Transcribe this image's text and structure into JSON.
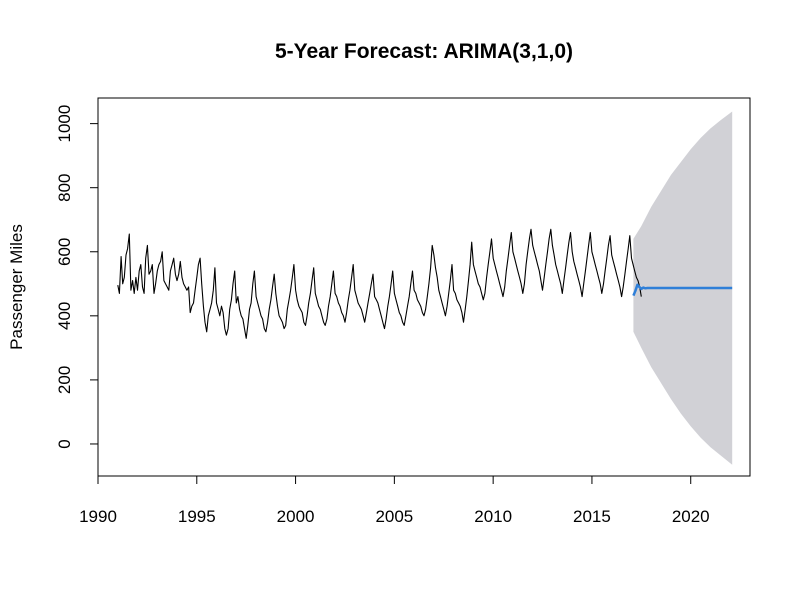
{
  "chart_data": {
    "type": "line",
    "title": "5-Year Forecast: ARIMA(3,1,0)",
    "xlabel": "",
    "ylabel": "Passenger Miles",
    "xlim": [
      1990,
      2023
    ],
    "ylim": [
      -100,
      1080
    ],
    "x_ticks": [
      1990,
      1995,
      2000,
      2005,
      2010,
      2015,
      2020
    ],
    "x_tick_labels": [
      "1990",
      "1995",
      "2000",
      "2005",
      "2010",
      "2015",
      "2020"
    ],
    "y_ticks": [
      0,
      200,
      400,
      600,
      800,
      1000
    ],
    "y_tick_labels": [
      "0",
      "200",
      "400",
      "600",
      "800",
      "1000"
    ],
    "grid": false,
    "legend": "none",
    "series": [
      {
        "kind": "observed",
        "color": "#000000",
        "start": 1991.0,
        "step": 0.0833333,
        "values": [
          496,
          470,
          585,
          500,
          520,
          590,
          610,
          655,
          480,
          510,
          470,
          520,
          480,
          540,
          560,
          490,
          470,
          580,
          620,
          530,
          540,
          560,
          470,
          500,
          540,
          560,
          570,
          600,
          510,
          500,
          490,
          480,
          540,
          560,
          580,
          530,
          510,
          530,
          570,
          520,
          500,
          490,
          480,
          490,
          410,
          430,
          440,
          480,
          520,
          560,
          580,
          500,
          430,
          380,
          350,
          400,
          420,
          440,
          480,
          550,
          440,
          420,
          400,
          430,
          410,
          360,
          340,
          360,
          420,
          450,
          500,
          540,
          440,
          460,
          420,
          400,
          390,
          360,
          330,
          370,
          420,
          440,
          500,
          540,
          460,
          440,
          420,
          400,
          390,
          360,
          350,
          380,
          420,
          450,
          490,
          530,
          470,
          430,
          400,
          390,
          380,
          360,
          370,
          420,
          450,
          480,
          520,
          560,
          480,
          450,
          430,
          420,
          410,
          380,
          370,
          400,
          440,
          470,
          510,
          550,
          470,
          450,
          430,
          420,
          400,
          380,
          370,
          390,
          430,
          460,
          500,
          540,
          470,
          460,
          440,
          430,
          410,
          400,
          380,
          410,
          450,
          480,
          520,
          560,
          480,
          460,
          440,
          430,
          420,
          400,
          380,
          410,
          440,
          470,
          500,
          530,
          460,
          450,
          440,
          420,
          400,
          380,
          360,
          390,
          430,
          460,
          500,
          540,
          470,
          450,
          430,
          410,
          400,
          380,
          370,
          400,
          430,
          460,
          500,
          540,
          480,
          470,
          450,
          440,
          430,
          410,
          400,
          420,
          460,
          500,
          550,
          620,
          590,
          550,
          520,
          480,
          460,
          440,
          420,
          400,
          430,
          470,
          510,
          560,
          480,
          470,
          450,
          440,
          430,
          410,
          380,
          420,
          460,
          510,
          560,
          630,
          560,
          540,
          520,
          500,
          490,
          470,
          450,
          470,
          520,
          560,
          600,
          640,
          580,
          560,
          540,
          520,
          500,
          480,
          460,
          490,
          540,
          580,
          620,
          660,
          600,
          580,
          560,
          540,
          520,
          500,
          470,
          500,
          560,
          600,
          640,
          670,
          620,
          600,
          580,
          560,
          540,
          510,
          480,
          520,
          560,
          600,
          640,
          670,
          620,
          590,
          560,
          540,
          520,
          500,
          470,
          510,
          550,
          590,
          630,
          660,
          600,
          570,
          550,
          530,
          510,
          490,
          460,
          500,
          540,
          580,
          620,
          660,
          600,
          580,
          560,
          540,
          520,
          500,
          470,
          500,
          540,
          580,
          620,
          650,
          590,
          570,
          550,
          530,
          510,
          490,
          460,
          490,
          530,
          570,
          610,
          650,
          580,
          560,
          540,
          520,
          510,
          490,
          460
        ]
      },
      {
        "kind": "forecast",
        "color": "#2f7fd8",
        "x": [
          2017.1,
          2017.2,
          2017.3,
          2017.4,
          2017.5,
          2017.6,
          2017.7,
          2017.8,
          2018.0,
          2019.0,
          2020.0,
          2021.0,
          2022.1
        ],
        "values": [
          463,
          478,
          497,
          490,
          484,
          488,
          486,
          487,
          487,
          487,
          487,
          487,
          487
        ]
      }
    ],
    "band": {
      "color": "#d1d1d6",
      "x": [
        2017.1,
        2017.5,
        2018,
        2018.5,
        2019,
        2019.5,
        2020,
        2020.5,
        2021,
        2021.5,
        2022.1
      ],
      "upper": [
        640,
        680,
        740,
        790,
        840,
        880,
        920,
        955,
        985,
        1010,
        1038
      ],
      "lower": [
        350,
        300,
        240,
        190,
        140,
        95,
        55,
        20,
        -10,
        -35,
        -65
      ]
    }
  }
}
